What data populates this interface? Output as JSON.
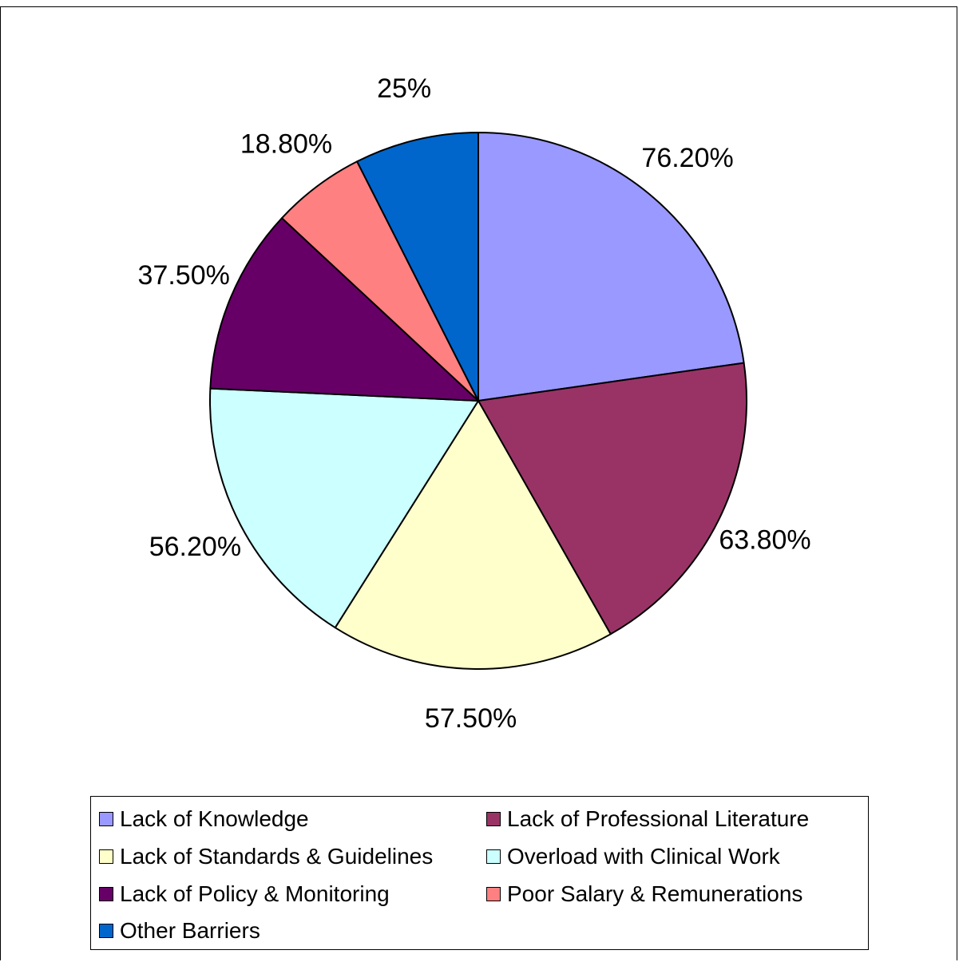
{
  "chart_data": {
    "type": "pie",
    "slices": [
      {
        "label": "76.20%",
        "value": 76.2,
        "name": "Lack of Knowledge",
        "color": "#9999ff"
      },
      {
        "label": "63.80%",
        "value": 63.8,
        "name": "Lack of Professional Literature",
        "color": "#993366"
      },
      {
        "label": "57.50%",
        "value": 57.5,
        "name": "Lack of Standards & Guidelines",
        "color": "#ffffcc"
      },
      {
        "label": "56.20%",
        "value": 56.2,
        "name": "Overload with Clinical Work",
        "color": "#ccffff"
      },
      {
        "label": "37.50%",
        "value": 37.5,
        "name": "Lack of Policy & Monitoring",
        "color": "#660066"
      },
      {
        "label": "18.80%",
        "value": 18.8,
        "name": "Poor Salary & Remunerations",
        "color": "#ff8080"
      },
      {
        "label": "25%",
        "value": 25,
        "name": "Other Barriers",
        "color": "#0066cc"
      }
    ],
    "legend_position": "bottom"
  }
}
